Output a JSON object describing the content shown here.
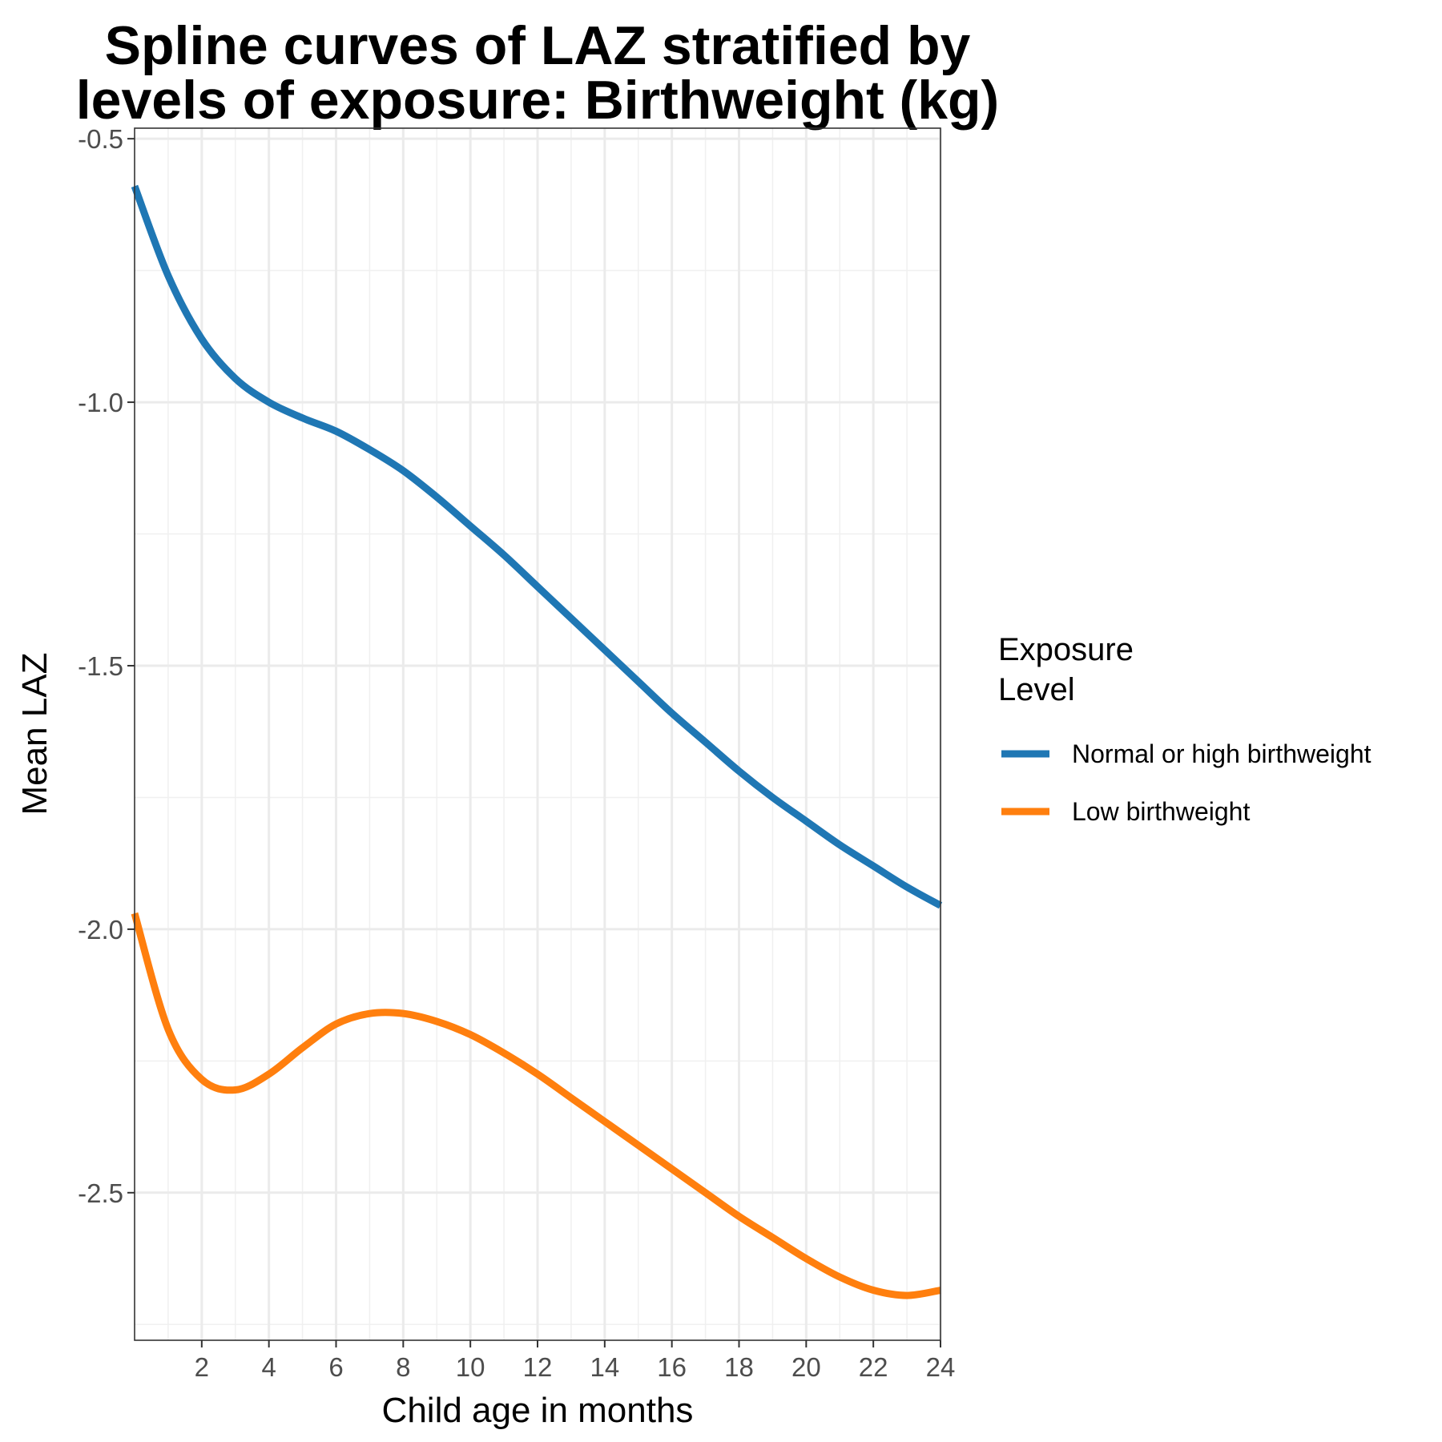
{
  "chart_data": {
    "type": "line",
    "title_lines": [
      "Spline curves of LAZ stratified by",
      "levels of exposure: Birthweight (kg)"
    ],
    "xlabel": "Child age in months",
    "ylabel": "Mean LAZ",
    "xlim": [
      0,
      24
    ],
    "ylim": [
      -2.78,
      -0.48
    ],
    "x_ticks": [
      2,
      4,
      6,
      8,
      10,
      12,
      14,
      16,
      18,
      20,
      22,
      24
    ],
    "y_ticks": [
      -0.5,
      -1.0,
      -1.5,
      -2.0,
      -2.5
    ],
    "y_tick_labels": [
      "-0.5",
      "-1.0",
      "-1.5",
      "-2.0",
      "-2.5"
    ],
    "x_minor_grid": [
      1,
      3,
      5,
      7,
      9,
      11,
      13,
      15,
      17,
      19,
      21,
      23
    ],
    "y_minor_grid": [
      -0.75,
      -1.25,
      -1.75,
      -2.25,
      -2.75
    ],
    "grid": true,
    "legend_position": "right",
    "legend_title_lines": [
      "Exposure",
      "Level"
    ],
    "series": [
      {
        "name": "Normal or high birthweight",
        "color": "#1f77b4",
        "x": [
          0,
          1,
          2,
          3,
          4,
          5,
          6,
          7,
          8,
          9,
          10,
          11,
          12,
          13,
          14,
          15,
          16,
          17,
          18,
          19,
          20,
          21,
          22,
          23,
          24
        ],
        "y": [
          -0.59,
          -0.76,
          -0.88,
          -0.955,
          -1.0,
          -1.03,
          -1.055,
          -1.09,
          -1.13,
          -1.18,
          -1.235,
          -1.29,
          -1.35,
          -1.41,
          -1.47,
          -1.53,
          -1.59,
          -1.645,
          -1.7,
          -1.75,
          -1.795,
          -1.84,
          -1.88,
          -1.92,
          -1.955
        ]
      },
      {
        "name": "Low birthweight",
        "color": "#ff7f0e",
        "x": [
          0,
          1,
          2,
          3,
          4,
          5,
          6,
          7,
          8,
          9,
          10,
          11,
          12,
          13,
          14,
          15,
          16,
          17,
          18,
          19,
          20,
          21,
          22,
          23,
          24
        ],
        "y": [
          -1.97,
          -2.19,
          -2.285,
          -2.305,
          -2.275,
          -2.225,
          -2.18,
          -2.16,
          -2.16,
          -2.175,
          -2.2,
          -2.235,
          -2.275,
          -2.32,
          -2.365,
          -2.41,
          -2.455,
          -2.5,
          -2.545,
          -2.585,
          -2.625,
          -2.66,
          -2.685,
          -2.695,
          -2.685
        ]
      }
    ]
  }
}
